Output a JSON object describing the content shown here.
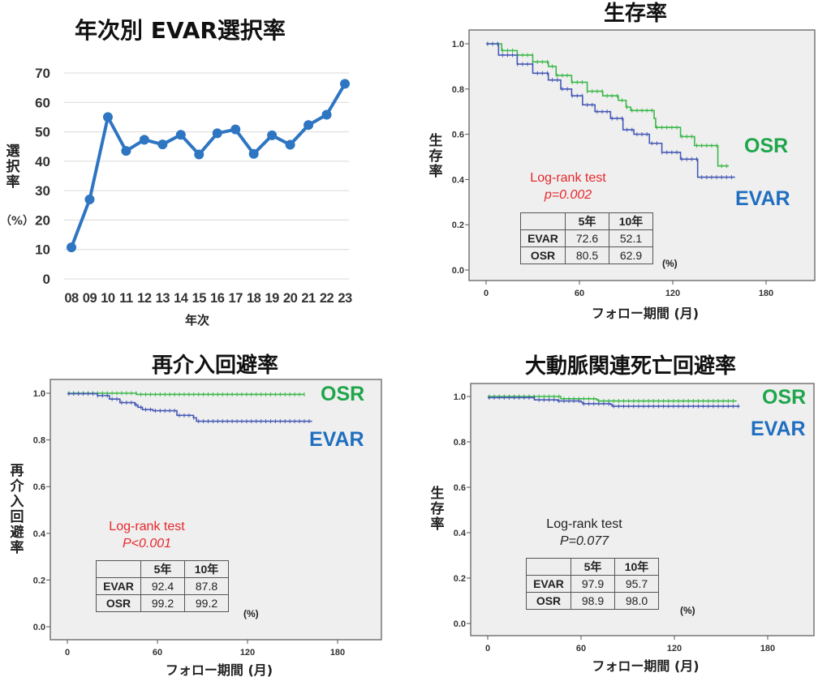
{
  "colors": {
    "line_bar": "#2e75c2",
    "evar": "#1f6ebf",
    "evar_curve": "#4659b5",
    "osr": "#1ea64a",
    "osr_curve": "#3cb84a",
    "log_red": "#e8262b",
    "plot_bg": "#efefef"
  },
  "chart_data": [
    {
      "type": "line",
      "title": "年次別 EVAR選択率",
      "xlabel": "年次",
      "ylabel": "選択率",
      "ylabel_unit": "（%）",
      "categories": [
        "08",
        "09",
        "10",
        "11",
        "12",
        "13",
        "14",
        "15",
        "16",
        "17",
        "18",
        "19",
        "20",
        "21",
        "22",
        "23"
      ],
      "values": [
        10.7,
        27.0,
        55.0,
        43.5,
        47.3,
        45.7,
        49.0,
        42.3,
        49.5,
        50.8,
        42.5,
        48.8,
        45.6,
        52.3,
        55.8,
        66.3
      ],
      "ylim": [
        0,
        70
      ],
      "yticks": [
        "0",
        "10",
        "20",
        "30",
        "40",
        "50",
        "60",
        "70"
      ],
      "grid": true
    },
    {
      "type": "line",
      "subtype": "kaplan-meier",
      "title": "生存率",
      "xlabel": "フォロー期間 (月)",
      "ylabel": "生存率",
      "xlim": [
        -11,
        211
      ],
      "ylim": [
        0,
        1.0
      ],
      "xticks": [
        "0",
        "60",
        "120",
        "180"
      ],
      "yticks": [
        "0.0",
        "0.2",
        "0.4",
        "0.6",
        "0.8",
        "1.0"
      ],
      "series": [
        {
          "name": "OSR",
          "points": [
            [
              0,
              1.0
            ],
            [
              10,
              0.97
            ],
            [
              20,
              0.95
            ],
            [
              30,
              0.92
            ],
            [
              40,
              0.9
            ],
            [
              45,
              0.86
            ],
            [
              55,
              0.83
            ],
            [
              65,
              0.79
            ],
            [
              75,
              0.77
            ],
            [
              85,
              0.75
            ],
            [
              90,
              0.72
            ],
            [
              93,
              0.705
            ],
            [
              107,
              0.705
            ],
            [
              108,
              0.67
            ],
            [
              109,
              0.63
            ],
            [
              124,
              0.63
            ],
            [
              125,
              0.59
            ],
            [
              133,
              0.59
            ],
            [
              134,
              0.55
            ],
            [
              148,
              0.55
            ],
            [
              149,
              0.46
            ],
            [
              156,
              0.46
            ]
          ]
        },
        {
          "name": "EVAR",
          "points": [
            [
              0,
              1.0
            ],
            [
              8,
              0.95
            ],
            [
              20,
              0.91
            ],
            [
              30,
              0.87
            ],
            [
              40,
              0.84
            ],
            [
              48,
              0.8
            ],
            [
              55,
              0.77
            ],
            [
              62,
              0.73
            ],
            [
              70,
              0.7
            ],
            [
              80,
              0.67
            ],
            [
              88,
              0.62
            ],
            [
              95,
              0.6
            ],
            [
              105,
              0.56
            ],
            [
              113,
              0.52
            ],
            [
              124,
              0.52
            ],
            [
              125,
              0.49
            ],
            [
              135,
              0.49
            ],
            [
              136,
              0.41
            ],
            [
              160,
              0.41
            ]
          ]
        }
      ],
      "series_labels": [
        "OSR",
        "EVAR"
      ],
      "test": {
        "name": "Log-rank test",
        "p": "p=0.002",
        "color": "red"
      },
      "table": {
        "header": [
          "",
          "5年",
          "10年"
        ],
        "rows": [
          [
            "EVAR",
            "72.6",
            "52.1"
          ],
          [
            "OSR",
            "80.5",
            "62.9"
          ]
        ],
        "unit": "(%)"
      }
    },
    {
      "type": "line",
      "subtype": "kaplan-meier",
      "title": "再介入回避率",
      "xlabel": "フォロー期間 (月)",
      "ylabel": "再介入回避率",
      "xlim": [
        -11,
        211
      ],
      "ylim": [
        0,
        1.0
      ],
      "xticks": [
        "0",
        "60",
        "120",
        "180"
      ],
      "yticks": [
        "0.0",
        "0.2",
        "0.4",
        "0.6",
        "0.8",
        "1.0"
      ],
      "series": [
        {
          "name": "OSR",
          "points": [
            [
              0,
              1.0
            ],
            [
              45,
              1.0
            ],
            [
              46,
              0.995
            ],
            [
              158,
              0.995
            ]
          ]
        },
        {
          "name": "EVAR",
          "points": [
            [
              0,
              0.998
            ],
            [
              20,
              0.99
            ],
            [
              28,
              0.975
            ],
            [
              35,
              0.96
            ],
            [
              45,
              0.95
            ],
            [
              47,
              0.94
            ],
            [
              50,
              0.93
            ],
            [
              57,
              0.925
            ],
            [
              70,
              0.925
            ],
            [
              73,
              0.905
            ],
            [
              84,
              0.895
            ],
            [
              86,
              0.88
            ],
            [
              163,
              0.88
            ]
          ]
        }
      ],
      "series_labels": [
        "OSR",
        "EVAR"
      ],
      "test": {
        "name": "Log-rank test",
        "p": "P<0.001",
        "color": "red"
      },
      "table": {
        "header": [
          "",
          "5年",
          "10年"
        ],
        "rows": [
          [
            "EVAR",
            "92.4",
            "87.8"
          ],
          [
            "OSR",
            "99.2",
            "99.2"
          ]
        ],
        "unit": "(%)"
      }
    },
    {
      "type": "line",
      "subtype": "kaplan-meier",
      "title": "大動脈関連死亡回避率",
      "xlabel": "フォロー期間 (月)",
      "ylabel": "生存率",
      "xlim": [
        -11,
        211
      ],
      "ylim": [
        0,
        1.0
      ],
      "xticks": [
        "0",
        "60",
        "120",
        "180"
      ],
      "yticks": [
        "0.0",
        "0.2",
        "0.4",
        "0.6",
        "0.8",
        "1.0"
      ],
      "series": [
        {
          "name": "OSR",
          "points": [
            [
              0,
              1.0
            ],
            [
              47,
              0.99
            ],
            [
              70,
              0.985
            ],
            [
              71,
              0.98
            ],
            [
              160,
              0.98
            ]
          ]
        },
        {
          "name": "EVAR",
          "points": [
            [
              0,
              0.995
            ],
            [
              30,
              0.985
            ],
            [
              45,
              0.98
            ],
            [
              60,
              0.975
            ],
            [
              61,
              0.968
            ],
            [
              79,
              0.965
            ],
            [
              80,
              0.957
            ],
            [
              162,
              0.957
            ]
          ]
        }
      ],
      "series_labels": [
        "OSR",
        "EVAR"
      ],
      "test": {
        "name": "Log-rank test",
        "p": "P=0.077",
        "color": "black"
      },
      "table": {
        "header": [
          "",
          "5年",
          "10年"
        ],
        "rows": [
          [
            "EVAR",
            "97.9",
            "95.7"
          ],
          [
            "OSR",
            "98.9",
            "98.0"
          ]
        ],
        "unit": "(%)"
      }
    }
  ]
}
